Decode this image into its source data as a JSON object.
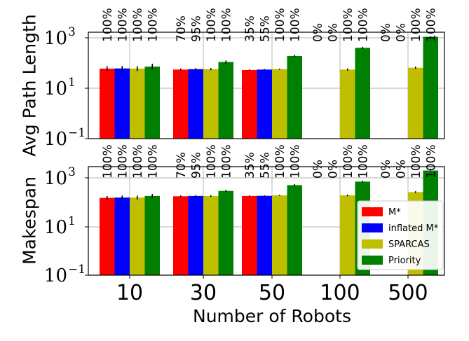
{
  "chart_data": [
    {
      "type": "bar",
      "ylabel": "Avg Path Length",
      "yscale": "log",
      "ylim": [
        0.1,
        1000
      ],
      "yticks": [
        {
          "base": "10",
          "exp": "3"
        },
        {
          "base": "10",
          "exp": "1"
        },
        {
          "base": "10",
          "exp": "−1"
        }
      ],
      "categories": [
        "10",
        "30",
        "50",
        "100",
        "500"
      ],
      "series": [
        {
          "name": "M*",
          "color": "#ff0000",
          "values": [
            60,
            55,
            53,
            null,
            null
          ],
          "errors": [
            1.25,
            1.1,
            1.05,
            null,
            null
          ],
          "labels": [
            "100%",
            "70%",
            "35%",
            "0%",
            "0%"
          ]
        },
        {
          "name": "inflated M*",
          "color": "#0000ff",
          "values": [
            61,
            57,
            55,
            null,
            null
          ],
          "errors": [
            1.25,
            1.1,
            1.05,
            null,
            null
          ],
          "labels": [
            "100%",
            "95%",
            "55%",
            "0%",
            "0%"
          ]
        },
        {
          "name": "SPARCAS",
          "color": "#bfbf00",
          "values": [
            60,
            57,
            57,
            55,
            65
          ],
          "errors": [
            1.25,
            1.1,
            1.05,
            1.1,
            1.1
          ],
          "labels": [
            "100%",
            "100%",
            "100%",
            "100%",
            "100%"
          ]
        },
        {
          "name": "Priority",
          "color": "#008000",
          "values": [
            72,
            110,
            190,
            400,
            1100
          ],
          "errors": [
            1.3,
            1.15,
            1.1,
            1.1,
            1.05
          ],
          "labels": [
            "100%",
            "100%",
            "100%",
            "100%",
            "100%"
          ]
        }
      ]
    },
    {
      "type": "bar",
      "ylabel": "Makespan",
      "yscale": "log",
      "ylim": [
        0.1,
        2000
      ],
      "yticks": [
        {
          "base": "10",
          "exp": "3"
        },
        {
          "base": "10",
          "exp": "1"
        },
        {
          "base": "10",
          "exp": "−1"
        }
      ],
      "xlabel": "Number of Robots",
      "categories": [
        "10",
        "30",
        "50",
        "100",
        "500"
      ],
      "series": [
        {
          "name": "M*",
          "color": "#ff0000",
          "values": [
            150,
            175,
            180,
            null,
            null
          ],
          "errors": [
            1.2,
            1.08,
            1.05,
            null,
            null
          ],
          "labels": [
            "100%",
            "70%",
            "35%",
            "0%",
            "0%"
          ]
        },
        {
          "name": "inflated M*",
          "color": "#0000ff",
          "values": [
            155,
            180,
            182,
            null,
            null
          ],
          "errors": [
            1.2,
            1.08,
            1.05,
            null,
            null
          ],
          "labels": [
            "100%",
            "95%",
            "55%",
            "0%",
            "0%"
          ]
        },
        {
          "name": "SPARCAS",
          "color": "#bfbf00",
          "values": [
            155,
            180,
            190,
            190,
            260
          ],
          "errors": [
            1.2,
            1.08,
            1.05,
            1.08,
            1.08
          ],
          "labels": [
            "100%",
            "100%",
            "100%",
            "100%",
            "100%"
          ]
        },
        {
          "name": "Priority",
          "color": "#008000",
          "values": [
            180,
            290,
            500,
            700,
            2000
          ],
          "errors": [
            1.2,
            1.1,
            1.12,
            1.08,
            1.05
          ],
          "labels": [
            "100%",
            "100%",
            "100%",
            "100%",
            "100%"
          ]
        }
      ]
    }
  ],
  "legend": {
    "placement": "lower-right of bottom panel",
    "entries": [
      {
        "name": "M*",
        "color": "#ff0000"
      },
      {
        "name": "inflated M*",
        "color": "#0000ff"
      },
      {
        "name": "SPARCAS",
        "color": "#bfbf00"
      },
      {
        "name": "Priority",
        "color": "#008000"
      }
    ]
  }
}
